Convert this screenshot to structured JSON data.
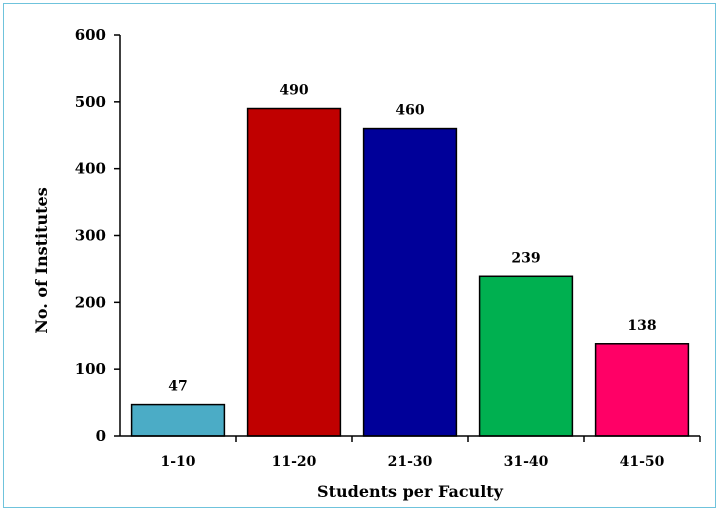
{
  "chart_data": {
    "type": "bar",
    "title": "",
    "xlabel": "Students per Faculty",
    "ylabel": "No. of Institutes",
    "categories": [
      "1-10",
      "11-20",
      "21-30",
      "31-40",
      "41-50"
    ],
    "values": [
      47,
      490,
      460,
      239,
      138
    ],
    "data_labels": [
      "47",
      "490",
      "460",
      "239",
      "138"
    ],
    "colors": [
      "#4bacc6",
      "#c00000",
      "#000099",
      "#00b050",
      "#ff0066"
    ],
    "ylim": [
      0,
      600
    ],
    "yticks": [
      0,
      100,
      200,
      300,
      400,
      500,
      600
    ],
    "ytick_labels": [
      "0",
      "100",
      "200",
      "300",
      "400",
      "500",
      "600"
    ],
    "grid": false,
    "legend": "none"
  }
}
